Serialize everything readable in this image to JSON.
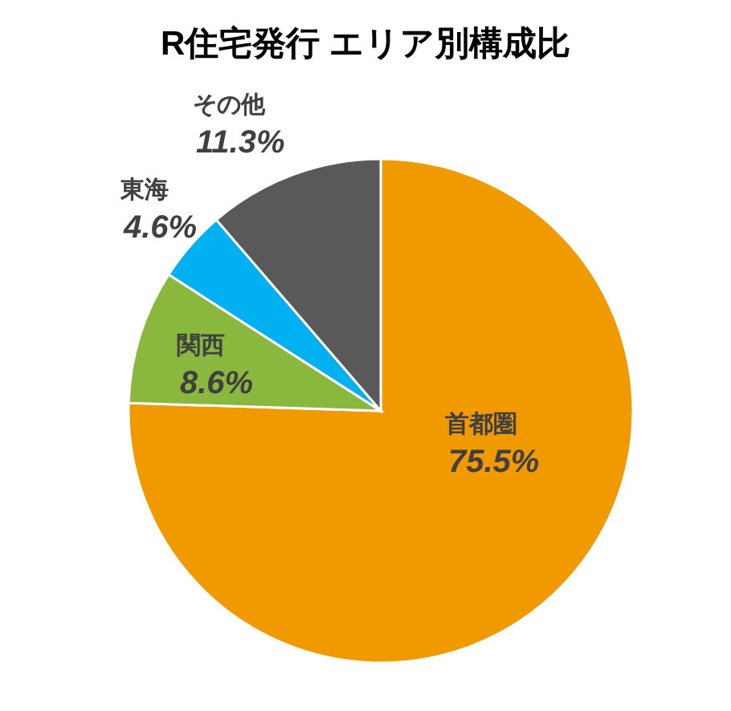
{
  "chart_data": {
    "type": "pie",
    "title": "R住宅発行 エリア別構成比",
    "categories": [
      "首都圏",
      "関西",
      "東海",
      "その他"
    ],
    "values": [
      75.5,
      8.6,
      4.6,
      11.3
    ],
    "value_labels": [
      "75.5%",
      "8.6%",
      "4.6%",
      "11.3%"
    ],
    "colors": [
      "#f09a00",
      "#8ab83e",
      "#00b0f0",
      "#595959"
    ],
    "legend": false
  }
}
